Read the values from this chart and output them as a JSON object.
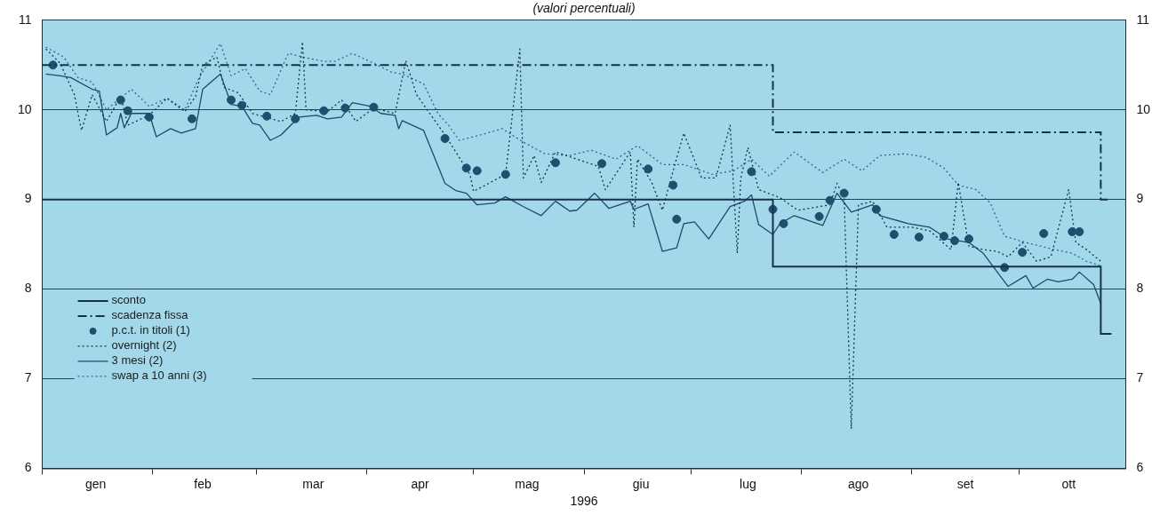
{
  "chart_data": {
    "type": "line",
    "subtitle": "(valori percentuali)",
    "xlabel": "1996",
    "xlim": [
      "1996-01-01",
      "1996-10-31"
    ],
    "xticks": [
      {
        "value": "1996-01-01",
        "label": null
      },
      {
        "value": "1996-02-01",
        "label": null
      },
      {
        "value": "1996-03-01",
        "label": null
      },
      {
        "value": "1996-04-01",
        "label": null
      },
      {
        "value": "1996-05-01",
        "label": null
      },
      {
        "value": "1996-06-01",
        "label": null
      },
      {
        "value": "1996-07-01",
        "label": null
      },
      {
        "value": "1996-08-01",
        "label": null
      },
      {
        "value": "1996-09-01",
        "label": null
      },
      {
        "value": "1996-10-01",
        "label": null
      },
      {
        "value": "1996-01-16",
        "label": "gen"
      },
      {
        "value": "1996-02-15",
        "label": "feb"
      },
      {
        "value": "1996-03-17",
        "label": "mar"
      },
      {
        "value": "1996-04-16",
        "label": "apr"
      },
      {
        "value": "1996-05-16",
        "label": "mag"
      },
      {
        "value": "1996-06-17",
        "label": "giu"
      },
      {
        "value": "1996-07-17",
        "label": "lug"
      },
      {
        "value": "1996-08-17",
        "label": "ago"
      },
      {
        "value": "1996-09-16",
        "label": "set"
      },
      {
        "value": "1996-10-15",
        "label": "ott"
      }
    ],
    "ylim": [
      6,
      11
    ],
    "yticks": [
      6,
      7,
      8,
      9,
      10,
      11
    ],
    "y2lim": [
      6,
      11
    ],
    "y2ticks": [
      6,
      7,
      8,
      9,
      10,
      11
    ],
    "grid": "y",
    "legend": "bottom left",
    "series": [
      {
        "name": "sconto",
        "type": "step",
        "color": "#16324a",
        "line_style": "solid",
        "x": [
          "1996-01-01",
          "1996-07-24",
          "1996-10-24",
          "1996-10-27"
        ],
        "values": [
          9,
          8.25,
          7.5,
          7.5
        ]
      },
      {
        "name": "scadenza fissa",
        "type": "step",
        "color": "#16324a",
        "line_style": "dashdot",
        "x": [
          "1996-01-01",
          "1996-07-24",
          "1996-10-24",
          "1996-10-26"
        ],
        "values": [
          10.5,
          9.75,
          9,
          9
        ]
      },
      {
        "name": "p.c.t. in titoli (1)",
        "type": "scatter",
        "color": "#1d4f6e",
        "marker": "circle",
        "x": [
          "1996-01-04",
          "1996-01-23",
          "1996-01-25",
          "1996-01-31",
          "1996-02-12",
          "1996-02-23",
          "1996-02-26",
          "1996-03-04",
          "1996-03-12",
          "1996-03-20",
          "1996-03-26",
          "1996-04-03",
          "1996-04-23",
          "1996-04-29",
          "1996-05-02",
          "1996-05-10",
          "1996-05-24",
          "1996-06-06",
          "1996-06-19",
          "1996-06-26",
          "1996-06-27",
          "1996-07-18",
          "1996-07-24",
          "1996-07-27",
          "1996-08-06",
          "1996-08-09",
          "1996-08-13",
          "1996-08-22",
          "1996-08-27",
          "1996-09-03",
          "1996-09-10",
          "1996-09-13",
          "1996-09-17",
          "1996-09-27",
          "1996-10-02",
          "1996-10-08",
          "1996-10-16",
          "1996-10-18"
        ],
        "values": [
          10.5,
          10.11,
          9.99,
          9.92,
          9.9,
          10.11,
          10.05,
          9.93,
          9.9,
          9.99,
          10.02,
          10.03,
          9.68,
          9.35,
          9.32,
          9.28,
          9.41,
          9.4,
          9.34,
          9.16,
          8.78,
          9.31,
          8.89,
          8.73,
          8.81,
          8.99,
          9.07,
          8.89,
          8.61,
          8.58,
          8.59,
          8.54,
          8.56,
          8.24,
          8.41,
          8.62,
          8.64,
          8.64
        ]
      },
      {
        "name": "overnight (2)",
        "color": "#16324a",
        "line_style": "dotted",
        "x": [
          "1996-01-02",
          "1996-01-06",
          "1996-01-10",
          "1996-01-12",
          "1996-01-15",
          "1996-01-19",
          "1996-01-23",
          "1996-01-25",
          "1996-01-31",
          "1996-02-05",
          "1996-02-10",
          "1996-02-13",
          "1996-02-15",
          "1996-02-19",
          "1996-02-21",
          "1996-02-25",
          "1996-02-29",
          "1996-03-08",
          "1996-03-12",
          "1996-03-14",
          "1996-03-15",
          "1996-03-21",
          "1996-03-25",
          "1996-03-29",
          "1996-04-03",
          "1996-04-09",
          "1996-04-12",
          "1996-04-15",
          "1996-04-23",
          "1996-04-30",
          "1996-05-01",
          "1996-05-10",
          "1996-05-14",
          "1996-05-15",
          "1996-05-18",
          "1996-05-20",
          "1996-05-24",
          "1996-06-05",
          "1996-06-07",
          "1996-06-14",
          "1996-06-15",
          "1996-06-16",
          "1996-06-20",
          "1996-06-23",
          "1996-06-26",
          "1996-06-29",
          "1996-07-04",
          "1996-07-08",
          "1996-07-12",
          "1996-07-14",
          "1996-07-15",
          "1996-07-17",
          "1996-07-20",
          "1996-07-26",
          "1996-07-31",
          "1996-08-09",
          "1996-08-11",
          "1996-08-13",
          "1996-08-15",
          "1996-08-17",
          "1996-08-21",
          "1996-08-25",
          "1996-09-01",
          "1996-09-06",
          "1996-09-12",
          "1996-09-14",
          "1996-09-17",
          "1996-09-21",
          "1996-09-25",
          "1996-09-28",
          "1996-10-02",
          "1996-10-06",
          "1996-10-10",
          "1996-10-15",
          "1996-10-17",
          "1996-10-20",
          "1996-10-24"
        ],
        "values": [
          10.68,
          10.52,
          10.17,
          9.77,
          10.17,
          9.87,
          10.15,
          9.83,
          9.94,
          10.13,
          9.98,
          10.15,
          10.5,
          10.59,
          10.25,
          10.19,
          9.96,
          9.87,
          9.96,
          10.76,
          10.0,
          9.98,
          10.11,
          9.87,
          10.02,
          9.96,
          10.55,
          10.17,
          9.72,
          9.28,
          9.09,
          9.28,
          10.68,
          9.24,
          9.49,
          9.19,
          9.53,
          9.37,
          9.11,
          9.53,
          8.69,
          9.45,
          9.19,
          8.88,
          9.32,
          9.74,
          9.24,
          9.24,
          9.83,
          8.4,
          9.24,
          9.58,
          9.11,
          9.02,
          8.88,
          8.94,
          9.18,
          9.02,
          6.44,
          8.94,
          8.98,
          8.69,
          8.69,
          8.65,
          8.44,
          9.19,
          8.48,
          8.44,
          8.42,
          8.36,
          8.52,
          8.31,
          8.36,
          9.11,
          8.52,
          8.44,
          8.31
        ]
      },
      {
        "name": "3 mesi (2)",
        "color": "#1f4a66",
        "line_style": "solid",
        "x": [
          "1996-01-02",
          "1996-01-06",
          "1996-01-09",
          "1996-01-15",
          "1996-01-17",
          "1996-01-19",
          "1996-01-22",
          "1996-01-23",
          "1996-01-24",
          "1996-01-26",
          "1996-01-31",
          "1996-02-02",
          "1996-02-06",
          "1996-02-09",
          "1996-02-13",
          "1996-02-15",
          "1996-02-20",
          "1996-02-23",
          "1996-02-26",
          "1996-02-29",
          "1996-03-02",
          "1996-03-05",
          "1996-03-08",
          "1996-03-13",
          "1996-03-18",
          "1996-03-21",
          "1996-03-25",
          "1996-03-28",
          "1996-04-02",
          "1996-04-05",
          "1996-04-09",
          "1996-04-10",
          "1996-04-11",
          "1996-04-17",
          "1996-04-23",
          "1996-04-26",
          "1996-04-29",
          "1996-05-02",
          "1996-05-07",
          "1996-05-10",
          "1996-05-15",
          "1996-05-20",
          "1996-05-24",
          "1996-05-28",
          "1996-05-30",
          "1996-06-04",
          "1996-06-08",
          "1996-06-14",
          "1996-06-15",
          "1996-06-19",
          "1996-06-23",
          "1996-06-27",
          "1996-06-29",
          "1996-07-02",
          "1996-07-06",
          "1996-07-12",
          "1996-07-16",
          "1996-07-18",
          "1996-07-20",
          "1996-07-24",
          "1996-07-26",
          "1996-07-30",
          "1996-08-07",
          "1996-08-11",
          "1996-08-15",
          "1996-08-21",
          "1996-08-23",
          "1996-08-31",
          "1996-09-06",
          "1996-09-11",
          "1996-09-17",
          "1996-09-21",
          "1996-09-28",
          "1996-10-03",
          "1996-10-05",
          "1996-10-09",
          "1996-10-12",
          "1996-10-16",
          "1996-10-18",
          "1996-10-22",
          "1996-10-24"
        ],
        "values": [
          10.4,
          10.38,
          10.36,
          10.23,
          10.21,
          9.72,
          9.8,
          9.96,
          9.8,
          9.96,
          9.96,
          9.7,
          9.79,
          9.74,
          9.79,
          10.23,
          10.4,
          10.06,
          10.04,
          9.85,
          9.83,
          9.66,
          9.72,
          9.92,
          9.94,
          9.9,
          9.92,
          10.08,
          10.04,
          9.96,
          9.94,
          9.79,
          9.88,
          9.77,
          9.18,
          9.1,
          9.07,
          8.94,
          8.96,
          9.03,
          8.92,
          8.82,
          8.98,
          8.87,
          8.88,
          9.07,
          8.9,
          8.98,
          8.89,
          8.95,
          8.42,
          8.46,
          8.73,
          8.75,
          8.56,
          8.92,
          8.98,
          9.05,
          8.72,
          8.61,
          8.73,
          8.82,
          8.71,
          9.07,
          8.86,
          8.94,
          8.82,
          8.73,
          8.69,
          8.56,
          8.52,
          8.4,
          8.03,
          8.15,
          8.01,
          8.11,
          8.08,
          8.11,
          8.19,
          8.05,
          7.84
        ]
      },
      {
        "name": "swap a 10 anni (3)",
        "color": "#2c6a8a",
        "line_style": "dotted",
        "x": [
          "1996-01-02",
          "1996-01-07",
          "1996-01-11",
          "1996-01-15",
          "1996-01-19",
          "1996-01-26",
          "1996-01-31",
          "1996-02-05",
          "1996-02-10",
          "1996-02-14",
          "1996-02-20",
          "1996-02-23",
          "1996-02-27",
          "1996-03-02",
          "1996-03-05",
          "1996-03-10",
          "1996-03-14",
          "1996-03-20",
          "1996-03-23",
          "1996-03-28",
          "1996-04-03",
          "1996-04-08",
          "1996-04-11",
          "1996-04-17",
          "1996-04-21",
          "1996-04-24",
          "1996-04-27",
          "1996-05-03",
          "1996-05-09",
          "1996-05-15",
          "1996-05-21",
          "1996-05-28",
          "1996-06-03",
          "1996-06-10",
          "1996-06-16",
          "1996-06-23",
          "1996-06-29",
          "1996-07-07",
          "1996-07-13",
          "1996-07-18",
          "1996-07-23",
          "1996-07-30",
          "1996-08-07",
          "1996-08-13",
          "1996-08-18",
          "1996-08-23",
          "1996-08-30",
          "1996-09-05",
          "1996-09-10",
          "1996-09-14",
          "1996-09-19",
          "1996-09-23",
          "1996-09-27",
          "1996-10-03",
          "1996-10-07",
          "1996-10-11",
          "1996-10-16",
          "1996-10-20",
          "1996-10-24"
        ],
        "values": [
          10.7,
          10.59,
          10.36,
          10.31,
          10.0,
          10.23,
          10.04,
          10.13,
          10.0,
          10.36,
          10.74,
          10.38,
          10.46,
          10.21,
          10.17,
          10.63,
          10.59,
          10.54,
          10.54,
          10.63,
          10.52,
          10.42,
          10.4,
          10.29,
          9.96,
          9.83,
          9.66,
          9.72,
          9.79,
          9.64,
          9.51,
          9.49,
          9.55,
          9.45,
          9.6,
          9.39,
          9.39,
          9.28,
          9.32,
          9.45,
          9.26,
          9.53,
          9.3,
          9.45,
          9.32,
          9.49,
          9.51,
          9.47,
          9.35,
          9.16,
          9.11,
          8.96,
          8.59,
          8.52,
          8.48,
          8.44,
          8.4,
          8.31,
          8.26
        ]
      }
    ]
  }
}
